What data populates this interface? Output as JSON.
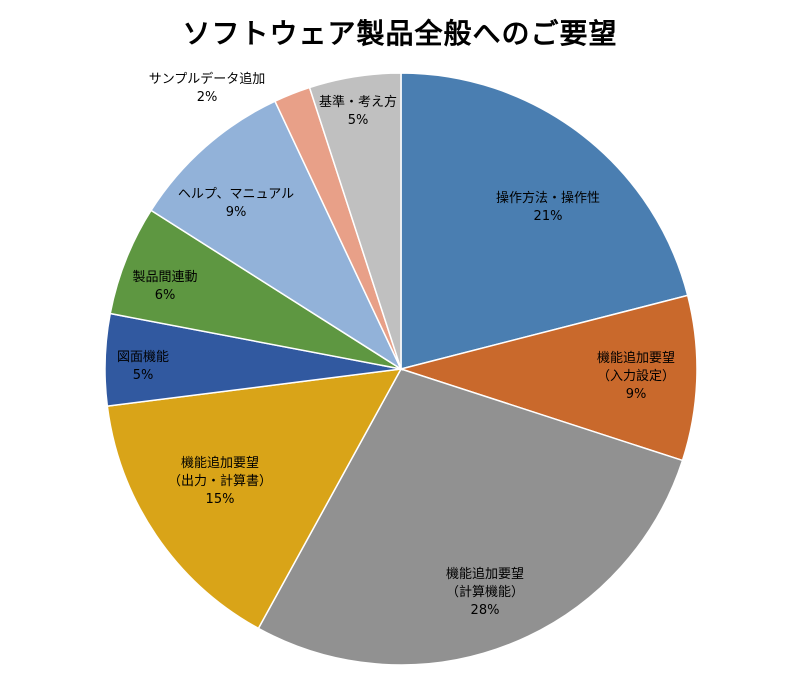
{
  "chart_data": {
    "type": "pie",
    "title": "ソフトウェア製品全般へのご要望",
    "legend": "none",
    "slices": [
      {
        "label": [
          "操作方法・操作性"
        ],
        "value": 21,
        "pct_label": "21%",
        "color": "#4a7eb1"
      },
      {
        "label": [
          "機能追加要望",
          "（入力設定）"
        ],
        "value": 9,
        "pct_label": "9%",
        "color": "#c9692c"
      },
      {
        "label": [
          "機能追加要望",
          "（計算機能）"
        ],
        "value": 28,
        "pct_label": "28%",
        "color": "#919191"
      },
      {
        "label": [
          "機能追加要望",
          "（出力・計算書）"
        ],
        "value": 15,
        "pct_label": "15%",
        "color": "#d9a418"
      },
      {
        "label": [
          "図面機能"
        ],
        "value": 5,
        "pct_label": "5%",
        "color": "#3159a0"
      },
      {
        "label": [
          "製品間連動"
        ],
        "value": 6,
        "pct_label": "6%",
        "color": "#5e9741"
      },
      {
        "label": [
          "ヘルプ、マニュアル"
        ],
        "value": 9,
        "pct_label": "9%",
        "color": "#92b2d9"
      },
      {
        "label": [
          "サンプルデータ追加"
        ],
        "value": 2,
        "pct_label": "2%",
        "color": "#e8a088"
      },
      {
        "label": [
          "基準・考え方"
        ],
        "value": 5,
        "pct_label": "5%",
        "color": "#c0c0c0"
      }
    ]
  }
}
